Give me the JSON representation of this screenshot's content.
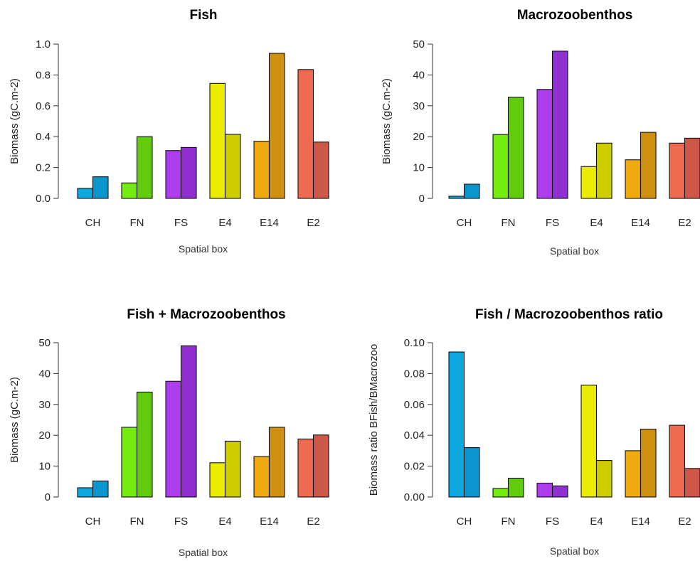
{
  "chart_data": [
    {
      "type": "bar",
      "title": "Fish",
      "xlabel": "Spatial box",
      "ylabel": "Biomass (gC.m-2)",
      "ylim": [
        0,
        1.0
      ],
      "yticks": [
        "0.0",
        "0.2",
        "0.4",
        "0.6",
        "0.8",
        "1.0"
      ],
      "categories": [
        "CH",
        "FN",
        "FS",
        "E4",
        "E14",
        "E2"
      ],
      "series": [
        {
          "values": [
            0.065,
            0.1,
            0.31,
            0.745,
            0.37,
            0.835
          ]
        },
        {
          "values": [
            0.14,
            0.4,
            0.33,
            0.415,
            0.94,
            0.365
          ]
        }
      ]
    },
    {
      "type": "bar",
      "title": "Macrozoobenthos",
      "xlabel": "Spatial box",
      "ylabel": "Biomass (gC.m-2)",
      "ylim": [
        0,
        50
      ],
      "yticks": [
        "0",
        "10",
        "20",
        "30",
        "40",
        "50"
      ],
      "categories": [
        "CH",
        "FN",
        "FS",
        "E4",
        "E14",
        "E2"
      ],
      "series": [
        {
          "values": [
            0.7,
            20.7,
            35.3,
            10.3,
            12.5,
            17.9
          ]
        },
        {
          "values": [
            4.6,
            32.8,
            47.7,
            17.9,
            21.4,
            19.5
          ]
        }
      ]
    },
    {
      "type": "bar",
      "title": "Fish + Macrozoobenthos",
      "xlabel": "Spatial box",
      "ylabel": "Biomass (gC.m-2)",
      "ylim": [
        0,
        50
      ],
      "yticks": [
        "0",
        "10",
        "20",
        "30",
        "40",
        "50"
      ],
      "categories": [
        "CH",
        "FN",
        "FS",
        "E4",
        "E14",
        "E2"
      ],
      "series": [
        {
          "values": [
            3.0,
            22.6,
            37.5,
            11.1,
            13.1,
            18.8
          ]
        },
        {
          "values": [
            5.2,
            34.0,
            49.0,
            18.1,
            22.6,
            20.1
          ]
        }
      ]
    },
    {
      "type": "bar",
      "title": "Fish / Macrozoobenthos ratio",
      "xlabel": "Spatial box",
      "ylabel": "Biomass ratio BFish/BMacrozoo",
      "ylim": [
        0,
        0.1
      ],
      "yticks": [
        "0.00",
        "0.02",
        "0.04",
        "0.06",
        "0.08",
        "0.10"
      ],
      "categories": [
        "CH",
        "FN",
        "FS",
        "E4",
        "E14",
        "E2"
      ],
      "series": [
        {
          "values": [
            0.094,
            0.0055,
            0.009,
            0.0725,
            0.03,
            0.0465
          ]
        },
        {
          "values": [
            0.032,
            0.0122,
            0.0072,
            0.0237,
            0.044,
            0.0185
          ]
        }
      ]
    }
  ],
  "colors": {
    "light": [
      "#0ea8e0",
      "#74ec12",
      "#ad3ded",
      "#ecec00",
      "#eeaa10",
      "#ee6a50"
    ],
    "dark": [
      "#0a96cc",
      "#62cc0c",
      "#9030d0",
      "#cdcd00",
      "#cd9010",
      "#cd5848"
    ]
  }
}
